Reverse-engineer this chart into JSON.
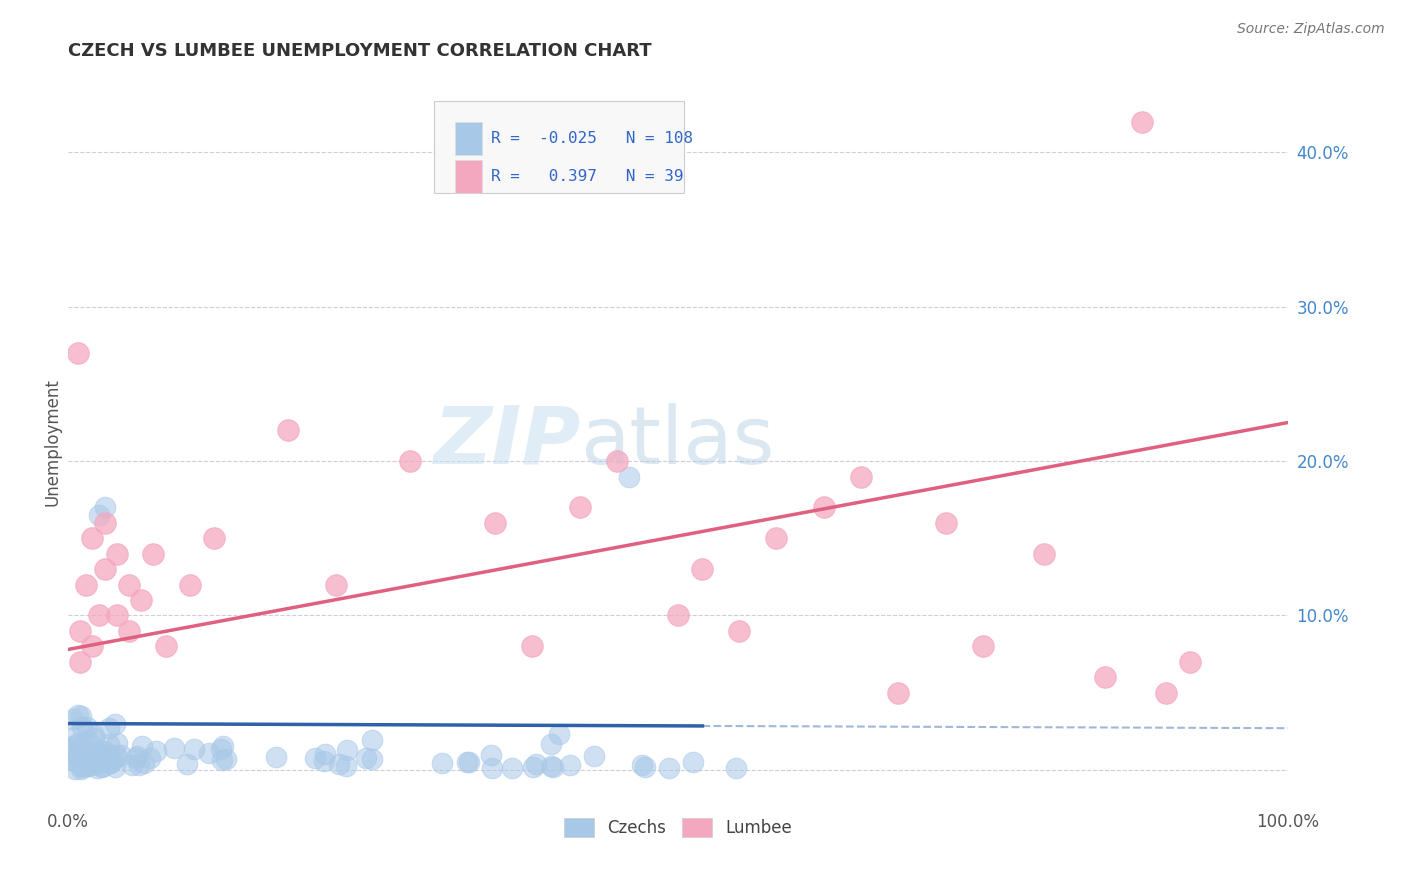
{
  "title": "CZECH VS LUMBEE UNEMPLOYMENT CORRELATION CHART",
  "source": "Source: ZipAtlas.com",
  "ylabel": "Unemployment",
  "xlim": [
    0.0,
    1.0
  ],
  "ylim": [
    -0.025,
    0.45
  ],
  "czech_color": "#a8c8e8",
  "lumbee_color": "#f4a8c0",
  "czech_line_color": "#3060a8",
  "lumbee_line_color": "#e06080",
  "czech_R": -0.025,
  "czech_N": 108,
  "lumbee_R": 0.397,
  "lumbee_N": 39,
  "background_color": "#ffffff",
  "grid_color": "#c8c8d8",
  "watermark_zip": "ZIP",
  "watermark_atlas": "atlas",
  "legend_text_color": "#3366cc",
  "title_color": "#333333",
  "right_tick_color": "#4488cc",
  "czech_line_y0": 0.03,
  "czech_line_y1": 0.027,
  "lumbee_line_y0": 0.078,
  "lumbee_line_y1": 0.225
}
